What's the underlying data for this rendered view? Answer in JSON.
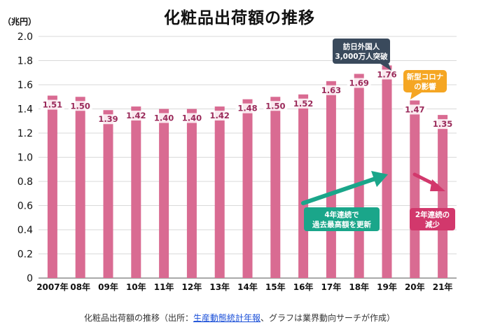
{
  "title": "化粧品出荷額の推移",
  "caption": {
    "prefix": "化粧品出荷額の推移（出所：",
    "link": "生産動態統計年報",
    "suffix": "、グラフは業界動向サーチが作成）"
  },
  "chart_data": {
    "type": "bar",
    "title": "化粧品出荷額の推移",
    "ylabel": "（兆円）",
    "xlabel": "",
    "categories": [
      "2007年",
      "08年",
      "09年",
      "10年",
      "11年",
      "12年",
      "13年",
      "14年",
      "15年",
      "16年",
      "17年",
      "18年",
      "19年",
      "20年",
      "21年"
    ],
    "values": [
      1.51,
      1.5,
      1.39,
      1.42,
      1.4,
      1.4,
      1.42,
      1.48,
      1.5,
      1.52,
      1.63,
      1.69,
      1.76,
      1.47,
      1.35
    ],
    "value_labels": [
      "1.51",
      "1.50",
      "1.39",
      "1.42",
      "1.40",
      "1.40",
      "1.42",
      "1.48",
      "1.50",
      "1.52",
      "1.63",
      "1.69",
      "1.76",
      "1.47",
      "1.35"
    ],
    "ylim": [
      0,
      2.0
    ],
    "yticks": [
      "0",
      "0.2",
      "0.4",
      "0.6",
      "0.8",
      "1.0",
      "1.2",
      "1.4",
      "1.6",
      "1.8",
      "2.0"
    ],
    "grid": true,
    "bar_color": "#d96b92",
    "annotations": [
      {
        "id": "inbound",
        "lines": [
          "訪日外国人",
          "3,000万人突破"
        ],
        "color": "#3a4a5c",
        "points_to": "19年"
      },
      {
        "id": "corona",
        "lines": [
          "新型コロナ",
          "の影響"
        ],
        "color": "#f5a623",
        "points_to": "20年"
      },
      {
        "id": "record",
        "lines": [
          "4年連続で",
          "過去最高額を更新"
        ],
        "color": "#1aa68a"
      },
      {
        "id": "decline",
        "lines": [
          "2年連続の",
          "減少"
        ],
        "color": "#d2386c"
      }
    ]
  }
}
